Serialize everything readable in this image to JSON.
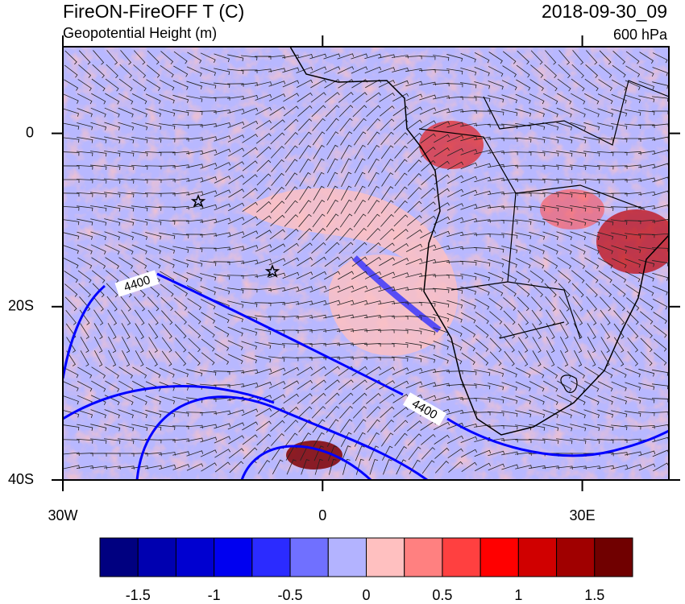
{
  "header": {
    "title": "FireON-FireOFF T (C)",
    "subtitle": "Geopotential Height (m)",
    "time": "2018-09-30_09",
    "level": "600 hPa"
  },
  "map": {
    "xlim": [
      -30,
      40
    ],
    "ylim": [
      -40,
      10
    ],
    "xticks": [
      {
        "value": -30,
        "label": "30W"
      },
      0,
      {
        "value": 30,
        "label": "30E"
      }
    ],
    "yticks": [
      0,
      {
        "value": -20,
        "label": "20S"
      },
      {
        "value": -40,
        "label": "40S"
      }
    ],
    "contour_labels": [
      "4400",
      "4400"
    ]
  },
  "colorbar": {
    "range": [
      -1.75,
      1.75
    ],
    "colors": [
      "#000080",
      "#0000b0",
      "#0000d0",
      "#0000f0",
      "#2b2bff",
      "#7070ff",
      "#b3b3ff",
      "#ffc0c0",
      "#ff8080",
      "#ff4040",
      "#ff0000",
      "#d00000",
      "#a00000",
      "#700000"
    ],
    "ticks": [
      -1.5,
      -1,
      -0.5,
      0,
      0.5,
      1,
      1.5
    ]
  }
}
